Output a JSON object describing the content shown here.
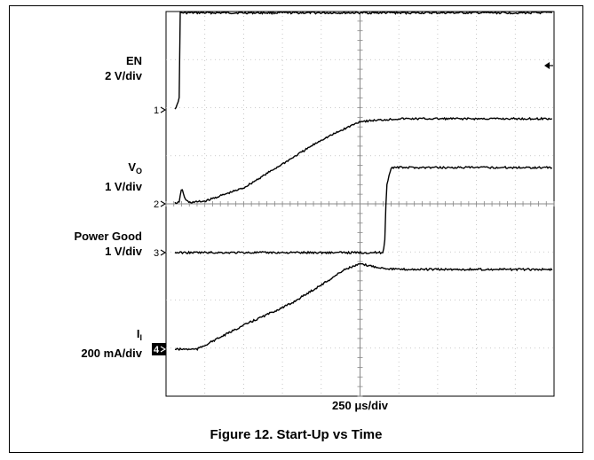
{
  "chart_data": {
    "type": "line",
    "title": "Figure 12. Start-Up vs Time",
    "xlabel": "250 μs/div",
    "x_unit": "μs",
    "x_divisions": 10,
    "y_divisions": 8,
    "grid": true,
    "channel_labels": [
      {
        "name": "EN",
        "scale": "2 V/div"
      },
      {
        "name": "V",
        "sub": "O",
        "scale": "1 V/div"
      },
      {
        "name": "Power Good",
        "scale": "1 V/div"
      },
      {
        "name": "I",
        "sub": "I",
        "scale": "200 mA/div"
      }
    ],
    "series": [
      {
        "name": "EN",
        "marker": "1",
        "color": "#000000",
        "x": [
          0,
          50,
          75,
          85,
          90,
          2500
        ],
        "y": [
          0,
          0,
          0.2,
          0.5,
          3.65,
          3.65
        ]
      },
      {
        "name": "V_O",
        "marker": "2",
        "color": "#000000",
        "x": [
          0,
          85,
          100,
          125,
          150,
          250,
          500,
          750,
          1000,
          1250,
          1500,
          2500
        ],
        "y": [
          0,
          0.05,
          0.6,
          0.15,
          0.05,
          0.1,
          0.6,
          1.5,
          2.4,
          3.1,
          3.2,
          3.2
        ]
      },
      {
        "name": "Power Good",
        "marker": "3",
        "color": "#000000",
        "x": [
          0,
          1400,
          1410,
          1420,
          1450,
          1500,
          2500
        ],
        "y": [
          0,
          0,
          0.5,
          2.5,
          3.2,
          3.2,
          3.2
        ]
      },
      {
        "name": "I_I",
        "marker": "4",
        "color": "#000000",
        "x": [
          0,
          200,
          500,
          800,
          1050,
          1150,
          1250,
          1300,
          1400,
          1500,
          2500
        ],
        "y": [
          0,
          0,
          0.9,
          1.7,
          2.6,
          3.0,
          3.2,
          3.15,
          3.05,
          3.0,
          3.0
        ]
      }
    ]
  }
}
